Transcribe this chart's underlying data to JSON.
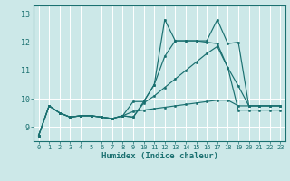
{
  "xlabel": "Humidex (Indice chaleur)",
  "bg_color": "#cce8e8",
  "grid_color": "#ffffff",
  "line_color": "#1a7070",
  "x_ticks": [
    0,
    1,
    2,
    3,
    4,
    5,
    6,
    7,
    8,
    9,
    10,
    11,
    12,
    13,
    14,
    15,
    16,
    17,
    18,
    19,
    20,
    21,
    22,
    23
  ],
  "y_ticks": [
    9,
    10,
    11,
    12,
    13
  ],
  "x_min": -0.5,
  "x_max": 23.5,
  "y_min": 8.5,
  "y_max": 13.3,
  "series": [
    [
      8.7,
      9.75,
      9.5,
      9.35,
      9.4,
      9.4,
      9.35,
      9.3,
      9.4,
      9.9,
      9.9,
      10.5,
      12.8,
      12.05,
      12.05,
      12.05,
      12.05,
      12.8,
      11.95,
      12.0,
      9.75,
      9.75,
      9.75,
      9.75
    ],
    [
      8.7,
      9.75,
      9.5,
      9.35,
      9.4,
      9.4,
      9.35,
      9.3,
      9.4,
      9.35,
      9.9,
      10.5,
      11.5,
      12.05,
      12.05,
      12.05,
      12.0,
      11.95,
      11.1,
      10.45,
      9.75,
      9.75,
      9.75,
      9.75
    ],
    [
      8.7,
      9.75,
      9.5,
      9.35,
      9.4,
      9.4,
      9.35,
      9.3,
      9.4,
      9.35,
      9.85,
      10.1,
      10.4,
      10.7,
      11.0,
      11.3,
      11.6,
      11.85,
      11.1,
      9.6,
      9.6,
      9.6,
      9.6,
      9.6
    ],
    [
      8.7,
      9.75,
      9.5,
      9.35,
      9.4,
      9.4,
      9.35,
      9.3,
      9.4,
      9.55,
      9.6,
      9.65,
      9.7,
      9.75,
      9.8,
      9.85,
      9.9,
      9.95,
      9.95,
      9.75,
      9.75,
      9.75,
      9.75,
      9.75
    ]
  ]
}
